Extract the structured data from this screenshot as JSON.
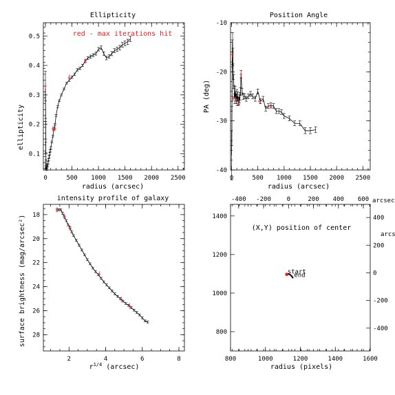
{
  "colors": {
    "axes": "#000000",
    "max_iter": "#e21d1d"
  },
  "chart_data": [
    {
      "type": "line",
      "title": "Ellipticity",
      "xlabel": "radius (arcsec)",
      "ylabel": "ellipticity",
      "xlim": [
        -40,
        2620
      ],
      "ylim": [
        0.045,
        0.545
      ],
      "xticks": [
        0,
        500,
        1000,
        1500,
        2000,
        2500
      ],
      "yticks": [
        0.1,
        0.2,
        0.3,
        0.4,
        0.5
      ],
      "annotation": "red - max iterations hit",
      "x": [
        0,
        2,
        4,
        6,
        8,
        10,
        12,
        15,
        20,
        25,
        30,
        40,
        50,
        60,
        70,
        80,
        90,
        100,
        120,
        140,
        160,
        180,
        200,
        230,
        260,
        300,
        350,
        400,
        450,
        500,
        550,
        600,
        650,
        700,
        750,
        800,
        850,
        900,
        950,
        1000,
        1050,
        1100,
        1150,
        1200,
        1250,
        1300,
        1350,
        1400,
        1450,
        1500,
        1550,
        1600
      ],
      "y": [
        0.33,
        0.26,
        0.18,
        0.12,
        0.09,
        0.07,
        0.06,
        0.055,
        0.05,
        0.05,
        0.055,
        0.06,
        0.07,
        0.08,
        0.09,
        0.1,
        0.11,
        0.12,
        0.14,
        0.16,
        0.185,
        0.2,
        0.23,
        0.26,
        0.28,
        0.3,
        0.32,
        0.34,
        0.35,
        0.36,
        0.37,
        0.385,
        0.39,
        0.4,
        0.415,
        0.425,
        0.43,
        0.435,
        0.44,
        0.455,
        0.46,
        0.44,
        0.425,
        0.43,
        0.44,
        0.45,
        0.455,
        0.46,
        0.47,
        0.475,
        0.48,
        0.49
      ],
      "err": [
        0.05,
        0.04,
        0.03,
        0.02,
        0.015,
        0.01,
        0.008,
        0.007,
        0.006,
        0.006,
        0.005,
        0.005,
        0.005,
        0.004,
        0.004,
        0.004,
        0.004,
        0.004,
        0.003,
        0.003,
        0.003,
        0.003,
        0.003,
        0.003,
        0.003,
        0.003,
        0.003,
        0.003,
        0.004,
        0.004,
        0.004,
        0.004,
        0.004,
        0.004,
        0.004,
        0.005,
        0.005,
        0.005,
        0.005,
        0.006,
        0.006,
        0.006,
        0.006,
        0.006,
        0.007,
        0.007,
        0.007,
        0.008,
        0.008,
        0.008,
        0.009,
        0.009
      ],
      "red_points": [
        [
          0,
          0.33
        ],
        [
          140,
          0.185
        ],
        [
          180,
          0.185
        ],
        [
          450,
          0.36
        ],
        [
          750,
          0.415
        ]
      ]
    },
    {
      "type": "line",
      "title": "Position Angle",
      "xlabel": "radius (arcsec)",
      "ylabel": "PA (deg)",
      "xlim": [
        -20,
        2640
      ],
      "ylim": [
        -40,
        -10
      ],
      "xticks": [
        0,
        500,
        1000,
        1500,
        2000,
        2500
      ],
      "yticks": [
        -10,
        -20,
        -30,
        -40
      ],
      "x": [
        0,
        5,
        10,
        15,
        20,
        25,
        30,
        40,
        50,
        60,
        70,
        80,
        90,
        100,
        110,
        120,
        130,
        140,
        150,
        160,
        170,
        180,
        200,
        220,
        250,
        280,
        320,
        360,
        400,
        450,
        500,
        550,
        600,
        650,
        700,
        750,
        800,
        850,
        900,
        950,
        1000,
        1100,
        1200,
        1300,
        1400,
        1500,
        1600
      ],
      "y": [
        -37,
        -31,
        -22,
        -16,
        -14,
        -17,
        -20,
        -22,
        -24,
        -25.5,
        -24,
        -25,
        -25.5,
        -24.5,
        -26,
        -25,
        -26,
        -26,
        -25.5,
        -25,
        -24,
        -20.5,
        -24,
        -25,
        -25,
        -25.5,
        -25,
        -24.5,
        -25,
        -25.5,
        -24,
        -26,
        -25.5,
        -27.5,
        -27,
        -26.8,
        -27,
        -28,
        -28,
        -28.2,
        -29,
        -29.5,
        -30.5,
        -30.5,
        -32,
        -32,
        -31.8
      ],
      "err": [
        5,
        4,
        3,
        2.5,
        2,
        1.8,
        1.6,
        1.4,
        1.2,
        1,
        1,
        1,
        1,
        0.9,
        0.9,
        0.9,
        0.8,
        0.8,
        0.8,
        0.8,
        0.8,
        0.8,
        0.6,
        0.6,
        0.5,
        0.5,
        0.5,
        0.5,
        0.5,
        0.5,
        0.5,
        0.5,
        0.5,
        0.5,
        0.5,
        0.5,
        0.5,
        0.5,
        0.5,
        0.5,
        0.5,
        0.5,
        0.5,
        0.5,
        0.6,
        0.6,
        0.6
      ],
      "red_points": [
        [
          15,
          -16.5
        ],
        [
          30,
          -25.5
        ],
        [
          130,
          -26
        ],
        [
          180,
          -20.5
        ],
        [
          530,
          -26
        ],
        [
          750,
          -27
        ]
      ]
    },
    {
      "type": "line",
      "title": "intensity profile of galaxy",
      "xlabel": "r1/4 (arcsec)",
      "ylabel": "surface brightness (mag/arcsec²)",
      "xlim": [
        0.6,
        8.3
      ],
      "ylim": [
        17.15,
        29.35
      ],
      "xticks": [
        2,
        4,
        6,
        8
      ],
      "yticks": [
        18,
        20,
        22,
        24,
        26,
        28
      ],
      "x": [
        1.35,
        1.45,
        1.55,
        1.65,
        1.75,
        1.85,
        1.95,
        2.05,
        2.15,
        2.25,
        2.4,
        2.55,
        2.7,
        2.85,
        3,
        3.15,
        3.3,
        3.45,
        3.6,
        3.75,
        3.9,
        4.05,
        4.2,
        4.35,
        4.5,
        4.65,
        4.8,
        4.95,
        5.1,
        5.25,
        5.4,
        5.55,
        5.7,
        5.85,
        6,
        6.15,
        6.3
      ],
      "y": [
        17.6,
        17.6,
        17.6,
        17.9,
        18.2,
        18.5,
        18.85,
        19.1,
        19.45,
        19.75,
        20.15,
        20.55,
        20.95,
        21.35,
        21.75,
        22.1,
        22.45,
        22.75,
        23,
        23.3,
        23.6,
        23.85,
        24.1,
        24.35,
        24.6,
        24.8,
        25,
        25.2,
        25.4,
        25.55,
        25.75,
        25.95,
        26.15,
        26.35,
        26.6,
        26.85,
        26.95
      ],
      "err": [
        0.08,
        0.08,
        0.08,
        0.08,
        0.08,
        0.08,
        0.08,
        0.08,
        0.08,
        0.08,
        0.08,
        0.08,
        0.08,
        0.08,
        0.08,
        0.08,
        0.08,
        0.08,
        0.08,
        0.08,
        0.08,
        0.08,
        0.08,
        0.08,
        0.08,
        0.08,
        0.08,
        0.08,
        0.08,
        0.08,
        0.08,
        0.08,
        0.08,
        0.08,
        0.08,
        0.08,
        0.08
      ],
      "red_points": [
        [
          1.35,
          17.6
        ],
        [
          1.75,
          18.15
        ],
        [
          2.05,
          19.1
        ],
        [
          3.65,
          22.95
        ],
        [
          4.85,
          25.05
        ],
        [
          5.3,
          25.6
        ]
      ]
    },
    {
      "type": "scatter",
      "title": "(X,Y) position of center",
      "xlabel": "radius (pixels)",
      "xlim": [
        800,
        1600
      ],
      "ylim": [
        700,
        1460
      ],
      "xticks": [
        800,
        1000,
        1200,
        1400,
        1600
      ],
      "yticks": [
        800,
        1000,
        1200,
        1400
      ],
      "top_xticks": [
        -400,
        -200,
        0,
        200,
        400,
        600
      ],
      "top_label": "arcsec",
      "top_xlim": [
        -465,
        655
      ],
      "right_yticks": [
        400,
        200,
        0,
        -200,
        -400
      ],
      "right_label": "arcsec",
      "right_ylim": [
        -565,
        495
      ],
      "x": [
        1122,
        1128,
        1135,
        1142,
        1148,
        1152,
        1156
      ],
      "y": [
        1097,
        1099,
        1098,
        1095,
        1090,
        1086,
        1080
      ],
      "red_points": [
        [
          1122,
          1097
        ]
      ],
      "start_label": "start",
      "end_label": "end"
    }
  ]
}
